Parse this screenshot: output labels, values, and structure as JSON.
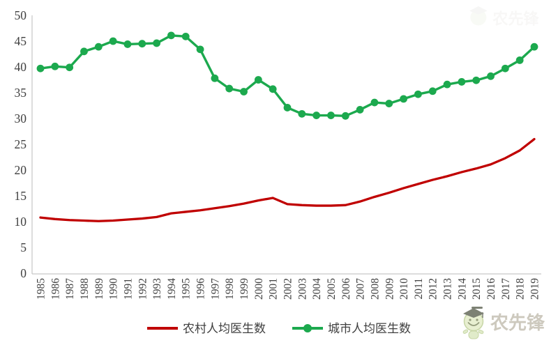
{
  "chart_data": {
    "type": "line",
    "x": [
      1985,
      1986,
      1987,
      1988,
      1989,
      1990,
      1991,
      1992,
      1993,
      1994,
      1995,
      1996,
      1997,
      1998,
      1999,
      2000,
      2001,
      2002,
      2003,
      2004,
      2005,
      2006,
      2007,
      2008,
      2009,
      2010,
      2011,
      2012,
      2013,
      2014,
      2015,
      2016,
      2017,
      2018,
      2019
    ],
    "series": [
      {
        "name": "农村人均医生数",
        "color": "#C00000",
        "marker": "none",
        "values": [
          10.8,
          10.5,
          10.3,
          10.2,
          10.1,
          10.2,
          10.4,
          10.6,
          10.9,
          11.6,
          11.9,
          12.2,
          12.6,
          13.0,
          13.5,
          14.1,
          14.6,
          13.4,
          13.2,
          13.1,
          13.1,
          13.2,
          13.9,
          14.8,
          15.6,
          16.5,
          17.3,
          18.1,
          18.8,
          19.6,
          20.3,
          21.1,
          22.3,
          23.8,
          26.0
        ]
      },
      {
        "name": "城市人均医生数",
        "color": "#1CA94E",
        "marker": "circle",
        "values": [
          39.7,
          40.1,
          39.9,
          43.0,
          43.9,
          45.0,
          44.4,
          44.5,
          44.6,
          46.1,
          45.9,
          43.4,
          37.8,
          35.8,
          35.2,
          37.5,
          35.7,
          32.1,
          30.9,
          30.6,
          30.6,
          30.5,
          31.7,
          33.1,
          32.9,
          33.8,
          34.7,
          35.3,
          36.6,
          37.1,
          37.4,
          38.2,
          39.7,
          41.3,
          43.9
        ]
      }
    ],
    "title": "",
    "xlabel": "",
    "ylabel": "",
    "ylim": [
      0,
      50
    ],
    "yticks": [
      0,
      5,
      10,
      15,
      20,
      25,
      30,
      35,
      40,
      45,
      50
    ],
    "grid": false,
    "legend_position": "bottom-center",
    "axis_color": "#C6C6C6",
    "tick_text_color": "#3F3F3F"
  },
  "legend": {
    "items": [
      {
        "label": "农村人均医生数",
        "color": "#C00000",
        "has_marker": false
      },
      {
        "label": "城市人均医生数",
        "color": "#1CA94E",
        "has_marker": true
      }
    ]
  },
  "watermark": {
    "text": "农先锋"
  }
}
